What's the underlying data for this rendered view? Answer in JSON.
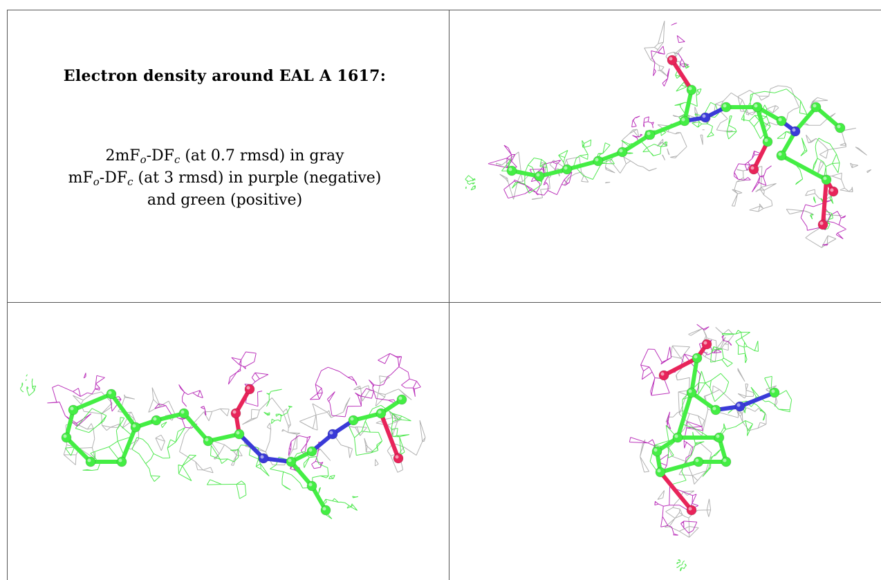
{
  "caption": {
    "title": "Electron density around EAL A 1617:",
    "line1": {
      "prefix": "2mF",
      "sub1": "o",
      "mid": "-DF",
      "sub2": "c",
      "suffix": " (at 0.7 rmsd) in gray"
    },
    "line2": {
      "prefix": "mF",
      "sub1": "o",
      "mid": "-DF",
      "sub2": "c",
      "suffix": " (at 3 rmsd) in purple (negative)"
    },
    "line3": "and green (positive)"
  },
  "colors": {
    "gray_mesh": "#a8a8a8",
    "purple_mesh": "#b41eb4",
    "green_mesh": "#3ee63e",
    "carbon": "#44ee44",
    "oxygen": "#e8245a",
    "nitrogen": "#3a3ad8",
    "grid": "#555555"
  },
  "panels": [
    {
      "view": "view-1"
    },
    {
      "view": "view-2"
    },
    {
      "view": "view-3"
    }
  ]
}
